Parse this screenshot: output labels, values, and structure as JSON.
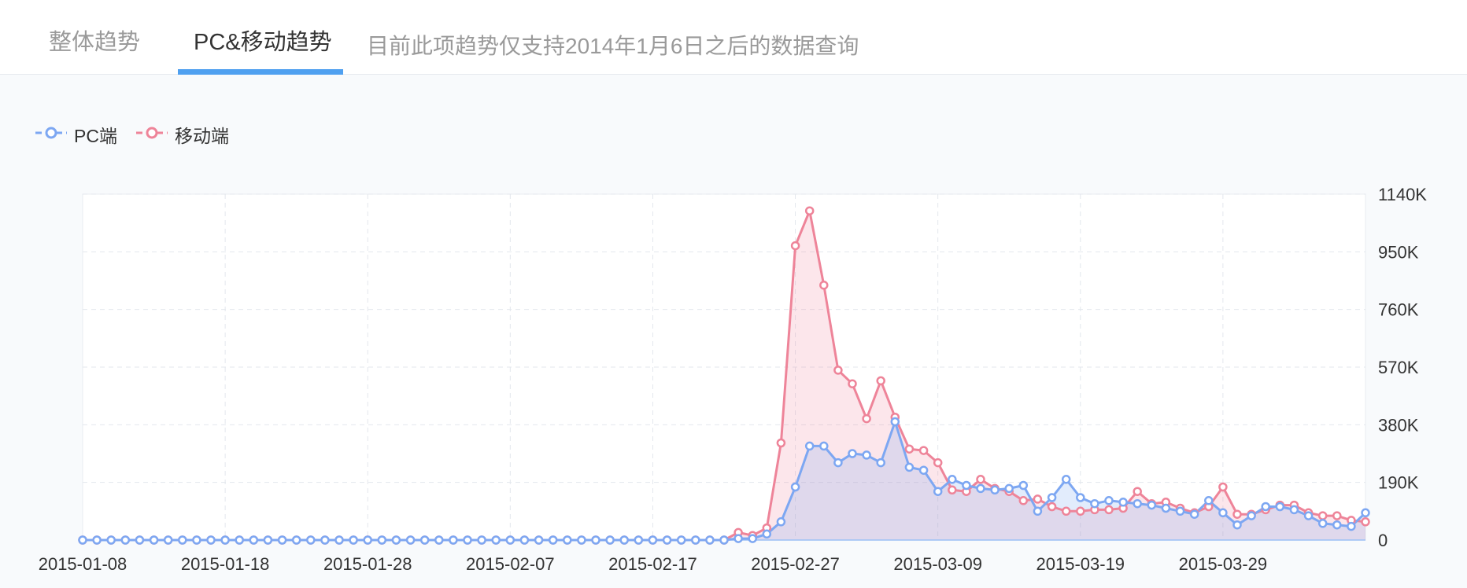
{
  "tabs": {
    "overall": "整体趋势",
    "pc_mobile": "PC&移动趋势",
    "note": "目前此项趋势仅支持2014年1月6日之后的数据查询"
  },
  "colors": {
    "pc": "#7da7f2",
    "mobile": "#ee8499",
    "tab_accent": "#4fa0f0"
  },
  "chart_data": {
    "type": "area",
    "title": "",
    "xlabel": "",
    "ylabel": "",
    "x_start": "2015-01-08",
    "x_end": "2015-04-07",
    "x_ticks": [
      "2015-01-08",
      "2015-01-18",
      "2015-01-28",
      "2015-02-07",
      "2015-02-17",
      "2015-02-27",
      "2015-03-09",
      "2015-03-19",
      "2015-03-29"
    ],
    "y_ticks": [
      "0",
      "190K",
      "380K",
      "570K",
      "760K",
      "950K",
      "1140K"
    ],
    "ylim": [
      0,
      1140000
    ],
    "grid": true,
    "legend": "top-left",
    "series": [
      {
        "name": "PC端",
        "color": "#7da7f2",
        "values": [
          0,
          0,
          0,
          0,
          0,
          0,
          0,
          0,
          0,
          0,
          0,
          0,
          0,
          0,
          0,
          0,
          0,
          0,
          0,
          0,
          0,
          0,
          0,
          0,
          0,
          0,
          0,
          0,
          0,
          0,
          0,
          0,
          0,
          0,
          0,
          0,
          0,
          0,
          0,
          0,
          0,
          0,
          0,
          0,
          0,
          0,
          5000,
          5000,
          20000,
          60000,
          175000,
          310000,
          310000,
          255000,
          285000,
          280000,
          255000,
          390000,
          240000,
          230000,
          160000,
          200000,
          180000,
          170000,
          165000,
          170000,
          180000,
          95000,
          140000,
          200000,
          140000,
          120000,
          130000,
          125000,
          120000,
          115000,
          105000,
          95000,
          85000,
          130000,
          90000,
          50000,
          80000,
          110000,
          110000,
          100000,
          80000,
          55000,
          50000,
          45000,
          90000
        ]
      },
      {
        "name": "移动端",
        "color": "#ee8499",
        "values": [
          0,
          0,
          0,
          0,
          0,
          0,
          0,
          0,
          0,
          0,
          0,
          0,
          0,
          0,
          0,
          0,
          0,
          0,
          0,
          0,
          0,
          0,
          0,
          0,
          0,
          0,
          0,
          0,
          0,
          0,
          0,
          0,
          0,
          0,
          0,
          0,
          0,
          0,
          0,
          0,
          0,
          0,
          0,
          0,
          0,
          0,
          25000,
          15000,
          40000,
          320000,
          970000,
          1085000,
          840000,
          560000,
          515000,
          400000,
          525000,
          405000,
          300000,
          295000,
          255000,
          165000,
          160000,
          200000,
          170000,
          160000,
          130000,
          135000,
          110000,
          95000,
          95000,
          100000,
          100000,
          105000,
          160000,
          120000,
          125000,
          105000,
          90000,
          110000,
          175000,
          85000,
          85000,
          100000,
          115000,
          115000,
          90000,
          80000,
          80000,
          65000,
          60000
        ]
      }
    ]
  }
}
